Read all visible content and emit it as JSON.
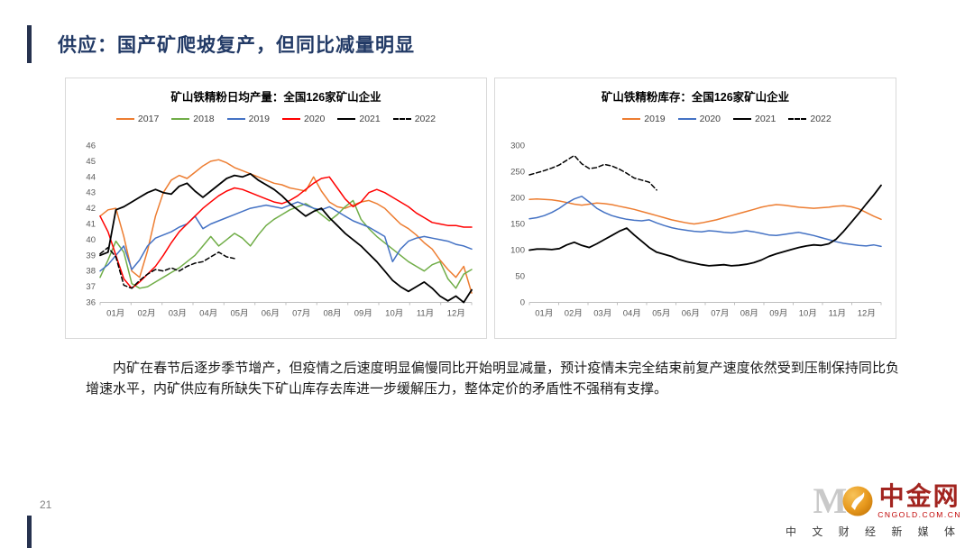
{
  "slide": {
    "title": "供应：国产矿爬坡复产，但同比减量明显",
    "page_number": "21",
    "body_text": "内矿在春节后逐步季节增产，但疫情之后速度明显偏慢同比开始明显减量，预计疫情未完全结束前复产速度依然受到压制保持同比负增速水平，内矿供应有所缺失下矿山库存去库进一步缓解压力，整体定价的矛盾性不强稍有支撑。"
  },
  "logo": {
    "watermark": "M",
    "icon": "gold-circle-swirl-icon",
    "name": "中金网",
    "domain": "CNGOLD.COM.CN",
    "tagline": "中 文 财 经 新 媒 体"
  },
  "chart_data": [
    {
      "type": "line",
      "title": "矿山铁精粉日均产量：全国126家矿山企业",
      "xlabel": "",
      "ylabel": "",
      "ylim": [
        36,
        46
      ],
      "yticks": [
        36,
        37,
        38,
        39,
        40,
        41,
        42,
        43,
        44,
        45,
        46
      ],
      "x_tick_labels": [
        "01月",
        "02月",
        "03月",
        "04月",
        "05月",
        "06月",
        "07月",
        "08月",
        "09月",
        "10月",
        "11月",
        "12月"
      ],
      "grid": false,
      "legend_position": "top",
      "series": [
        {
          "name": "2017",
          "color": "#ED7D31",
          "dash": false,
          "width": 1.5,
          "values": [
            41.5,
            41.9,
            42.0,
            40.2,
            38.0,
            37.6,
            39.3,
            41.5,
            43.0,
            43.8,
            44.1,
            43.9,
            44.3,
            44.7,
            45.0,
            45.1,
            44.9,
            44.6,
            44.4,
            44.2,
            44.0,
            43.8,
            43.6,
            43.5,
            43.3,
            43.2,
            43.1,
            44.0,
            43.1,
            42.4,
            42.1,
            42.0,
            42.2,
            42.4,
            42.5,
            42.3,
            42.0,
            41.5,
            41.0,
            40.7,
            40.3,
            39.8,
            39.4,
            38.7,
            38.1,
            37.6,
            38.3,
            36.6
          ]
        },
        {
          "name": "2018",
          "color": "#70AD47",
          "dash": false,
          "width": 1.5,
          "values": [
            37.6,
            38.7,
            39.9,
            39.2,
            37.2,
            36.9,
            37.0,
            37.3,
            37.6,
            37.9,
            38.2,
            38.6,
            39.0,
            39.6,
            40.2,
            39.6,
            40.0,
            40.4,
            40.1,
            39.6,
            40.3,
            40.9,
            41.3,
            41.6,
            41.9,
            42.1,
            42.3,
            42.0,
            41.6,
            41.2,
            41.6,
            42.1,
            42.5,
            41.3,
            40.7,
            40.2,
            39.8,
            39.4,
            39.0,
            38.6,
            38.3,
            38.0,
            38.4,
            38.6,
            37.5,
            36.9,
            37.8,
            38.1
          ]
        },
        {
          "name": "2019",
          "color": "#4472C4",
          "dash": false,
          "width": 1.5,
          "values": [
            38.0,
            38.4,
            39.0,
            39.6,
            38.1,
            38.7,
            39.6,
            40.1,
            40.3,
            40.5,
            40.8,
            41.0,
            41.5,
            40.7,
            41.0,
            41.2,
            41.4,
            41.6,
            41.8,
            42.0,
            42.1,
            42.2,
            42.1,
            42.0,
            42.2,
            42.4,
            42.2,
            42.0,
            41.9,
            42.1,
            41.8,
            41.5,
            41.2,
            41.0,
            40.8,
            40.5,
            40.2,
            38.6,
            39.4,
            39.9,
            40.1,
            40.2,
            40.1,
            40.0,
            39.9,
            39.7,
            39.6,
            39.4
          ]
        },
        {
          "name": "2020",
          "color": "#FF0000",
          "dash": false,
          "width": 1.5,
          "values": [
            41.5,
            40.5,
            39.0,
            37.5,
            36.9,
            37.3,
            37.8,
            38.3,
            39.0,
            39.8,
            40.5,
            41.0,
            41.5,
            42.0,
            42.4,
            42.8,
            43.1,
            43.3,
            43.2,
            43.0,
            42.8,
            42.6,
            42.4,
            42.3,
            42.5,
            42.8,
            43.2,
            43.6,
            43.9,
            44.0,
            43.3,
            42.6,
            42.1,
            42.4,
            43.0,
            43.2,
            43.0,
            42.7,
            42.4,
            42.1,
            41.7,
            41.4,
            41.1,
            41.0,
            40.9,
            40.9,
            40.8,
            40.8
          ]
        },
        {
          "name": "2021",
          "color": "#000000",
          "dash": false,
          "width": 1.8,
          "values": [
            39.0,
            39.2,
            41.9,
            42.1,
            42.4,
            42.7,
            43.0,
            43.2,
            43.0,
            42.9,
            43.4,
            43.6,
            43.1,
            42.7,
            43.1,
            43.5,
            43.9,
            44.1,
            44.0,
            44.2,
            43.8,
            43.5,
            43.2,
            42.8,
            42.3,
            41.9,
            41.5,
            41.8,
            42.0,
            41.4,
            40.9,
            40.4,
            40.0,
            39.6,
            39.1,
            38.6,
            38.0,
            37.4,
            37.0,
            36.7,
            37.0,
            37.3,
            36.9,
            36.4,
            36.1,
            36.4,
            36.0,
            36.8
          ]
        },
        {
          "name": "2022",
          "color": "#000000",
          "dash": true,
          "width": 1.5,
          "values": [
            39.1,
            39.5,
            38.9,
            37.1,
            36.9,
            37.4,
            37.8,
            38.1,
            38.0,
            38.2,
            38.0,
            38.3,
            38.5,
            38.6,
            38.9,
            39.2,
            38.9,
            38.8
          ]
        }
      ]
    },
    {
      "type": "line",
      "title": "矿山铁精粉库存：全国126家矿山企业",
      "xlabel": "",
      "ylabel": "",
      "ylim": [
        0,
        300
      ],
      "yticks": [
        0,
        50,
        100,
        150,
        200,
        250,
        300
      ],
      "x_tick_labels": [
        "01月",
        "02月",
        "03月",
        "04月",
        "05月",
        "06月",
        "07月",
        "08月",
        "09月",
        "10月",
        "11月",
        "12月"
      ],
      "grid": false,
      "legend_position": "top",
      "series": [
        {
          "name": "2019",
          "color": "#ED7D31",
          "dash": false,
          "width": 1.5,
          "values": [
            197,
            198,
            197,
            196,
            194,
            191,
            188,
            186,
            188,
            190,
            189,
            187,
            184,
            181,
            178,
            174,
            170,
            166,
            162,
            158,
            155,
            152,
            150,
            152,
            155,
            158,
            162,
            166,
            170,
            174,
            178,
            182,
            185,
            187,
            186,
            184,
            182,
            181,
            180,
            181,
            182,
            184,
            185,
            183,
            179,
            172,
            165,
            159
          ]
        },
        {
          "name": "2020",
          "color": "#4472C4",
          "dash": false,
          "width": 1.5,
          "values": [
            160,
            162,
            166,
            172,
            180,
            190,
            198,
            203,
            192,
            180,
            172,
            166,
            162,
            159,
            157,
            156,
            158,
            152,
            147,
            143,
            140,
            138,
            136,
            135,
            137,
            136,
            134,
            133,
            135,
            137,
            135,
            132,
            129,
            128,
            130,
            132,
            134,
            131,
            128,
            124,
            120,
            116,
            113,
            111,
            109,
            108,
            110,
            107
          ]
        },
        {
          "name": "2021",
          "color": "#000000",
          "dash": false,
          "width": 1.8,
          "values": [
            100,
            102,
            102,
            101,
            103,
            110,
            115,
            109,
            105,
            112,
            120,
            128,
            136,
            142,
            129,
            117,
            105,
            96,
            92,
            88,
            82,
            78,
            75,
            72,
            70,
            71,
            72,
            70,
            71,
            73,
            76,
            81,
            88,
            93,
            97,
            101,
            105,
            108,
            110,
            109,
            112,
            121,
            136,
            153,
            170,
            188,
            205,
            224
          ]
        },
        {
          "name": "2022",
          "color": "#000000",
          "dash": true,
          "width": 1.5,
          "values": [
            244,
            248,
            252,
            257,
            263,
            272,
            281,
            265,
            256,
            258,
            264,
            261,
            255,
            247,
            238,
            234,
            230,
            215
          ]
        }
      ]
    }
  ]
}
